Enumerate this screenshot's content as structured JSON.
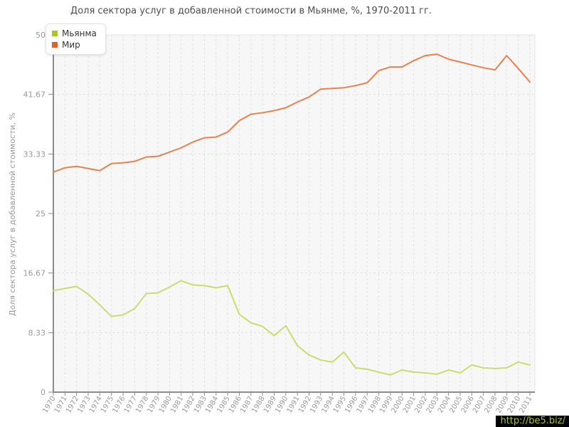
{
  "title": "Доля сектора услуг в добавленной стоимости в Мьянме, %, 1970-2011 гг.",
  "watermark": "http://be5.biz/",
  "axes": {
    "y_tick_labels": [
      "0",
      "8.33",
      "16.67",
      "25",
      "33.33",
      "41.67",
      "50"
    ],
    "x_tick_labels_visible": "all years 1970-2011, rotated"
  },
  "colors": {
    "plot_background": "#f7f7f7",
    "grid": "#e0e0e0",
    "axis": "#8c8c8c",
    "tick_text": "#999999",
    "title_text": "#4d4d4d",
    "legend_text": "#333333",
    "watermark_bg": "#000000",
    "watermark_text": "#b2c620"
  },
  "chart_data": {
    "type": "line",
    "title": "Доля сектора услуг в добавленной стоимости в Мьянме, %, 1970-2011 гг.",
    "xlabel": "",
    "ylabel": "Доля сектора услуг в добавленной стоимости, %",
    "ylim": [
      0,
      50
    ],
    "yticks": [
      0,
      8.33,
      16.67,
      25,
      33.33,
      41.67,
      50
    ],
    "grid": true,
    "grid_style": "dashed",
    "legend_position": "top-left",
    "x": [
      1970,
      1971,
      1972,
      1973,
      1974,
      1975,
      1976,
      1977,
      1978,
      1979,
      1980,
      1981,
      1982,
      1983,
      1984,
      1985,
      1986,
      1987,
      1988,
      1989,
      1990,
      1991,
      1992,
      1993,
      1994,
      1995,
      1996,
      1997,
      1998,
      1999,
      2000,
      2001,
      2002,
      2003,
      2004,
      2005,
      2006,
      2007,
      2008,
      2009,
      2010,
      2011
    ],
    "series": [
      {
        "name": "Мьянма",
        "marker_color": "#a8c624",
        "color": "#c9dd6f",
        "values": [
          14.2,
          14.5,
          14.8,
          13.7,
          12.2,
          10.6,
          10.8,
          11.7,
          13.8,
          13.9,
          14.7,
          15.6,
          15.0,
          14.9,
          14.6,
          14.9,
          10.9,
          9.7,
          9.2,
          7.9,
          9.3,
          6.5,
          5.2,
          4.5,
          4.2,
          5.6,
          3.4,
          3.2,
          2.8,
          2.4,
          3.1,
          2.8,
          2.7,
          2.5,
          3.1,
          2.7,
          3.8,
          3.4,
          3.3,
          3.4,
          4.2,
          3.8
        ]
      },
      {
        "name": "Мир",
        "marker_color": "#e0622a",
        "color": "#e8814f",
        "values": [
          30.8,
          31.4,
          31.6,
          31.3,
          31.0,
          32.0,
          32.1,
          32.3,
          32.9,
          33.0,
          33.6,
          34.2,
          35.0,
          35.6,
          35.7,
          36.4,
          38.0,
          38.9,
          39.1,
          39.4,
          39.8,
          40.6,
          41.3,
          42.4,
          42.5,
          42.6,
          42.9,
          43.3,
          45.0,
          45.5,
          45.5,
          46.4,
          47.1,
          47.3,
          46.6,
          46.2,
          45.8,
          45.4,
          45.1,
          47.1,
          45.3,
          43.4
        ]
      }
    ]
  }
}
